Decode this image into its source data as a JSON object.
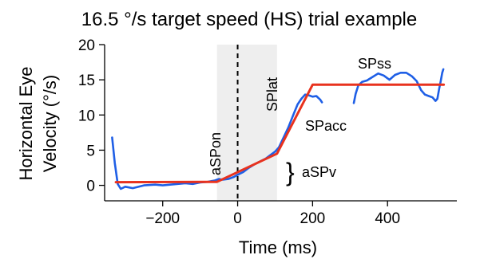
{
  "chart_data": {
    "type": "line",
    "title": "16.5 °/s target speed (HS) trial example",
    "xlabel": "Time (ms)",
    "ylabel_line1": "Horizontal Eye",
    "ylabel_line2": "Velocity (°/s)",
    "xlim": [
      -355,
      585
    ],
    "ylim": [
      -2.2,
      20
    ],
    "xticks": [
      -200,
      0,
      200,
      400
    ],
    "yticks": [
      0,
      5,
      10,
      15,
      20
    ],
    "grid": false,
    "shaded_region": {
      "x_start": -55,
      "x_end": 105,
      "color": "#eeeeee"
    },
    "vertical_line": {
      "x": 0,
      "style": "dashed",
      "color": "#000000"
    },
    "series": [
      {
        "role": "eye-velocity-early",
        "color": "#1f5fe6",
        "points": [
          [
            -335,
            6.8
          ],
          [
            -328,
            3.2
          ],
          [
            -320,
            0.2
          ],
          [
            -312,
            -0.5
          ],
          [
            -300,
            -0.2
          ],
          [
            -280,
            -0.4
          ],
          [
            -250,
            0.0
          ],
          [
            -220,
            0.1
          ],
          [
            -200,
            0.0
          ],
          [
            -180,
            0.1
          ],
          [
            -160,
            0.2
          ],
          [
            -140,
            0.3
          ],
          [
            -120,
            0.2
          ],
          [
            -100,
            0.4
          ],
          [
            -80,
            0.5
          ],
          [
            -60,
            0.7
          ],
          [
            -50,
            0.9
          ],
          [
            -40,
            0.8
          ],
          [
            -25,
            0.9
          ],
          [
            -10,
            1.2
          ],
          [
            0,
            1.5
          ],
          [
            15,
            1.9
          ],
          [
            30,
            2.5
          ],
          [
            45,
            3.0
          ],
          [
            60,
            3.4
          ],
          [
            75,
            3.8
          ],
          [
            90,
            4.4
          ],
          [
            100,
            4.8
          ],
          [
            110,
            5.4
          ],
          [
            120,
            6.5
          ],
          [
            135,
            8.2
          ],
          [
            150,
            10.2
          ],
          [
            160,
            11.5
          ],
          [
            170,
            12.3
          ],
          [
            180,
            12.9
          ],
          [
            190,
            12.8
          ],
          [
            200,
            12.6
          ],
          [
            210,
            12.7
          ],
          [
            220,
            12.2
          ],
          [
            225,
            11.8
          ]
        ]
      },
      {
        "role": "eye-velocity-late",
        "color": "#1f5fe6",
        "points": [
          [
            310,
            11.7
          ],
          [
            315,
            13.0
          ],
          [
            322,
            14.2
          ],
          [
            332,
            14.7
          ],
          [
            345,
            14.9
          ],
          [
            360,
            15.4
          ],
          [
            375,
            15.9
          ],
          [
            390,
            15.6
          ],
          [
            405,
            15.0
          ],
          [
            420,
            15.7
          ],
          [
            435,
            16.0
          ],
          [
            450,
            16.0
          ],
          [
            465,
            15.5
          ],
          [
            478,
            14.8
          ],
          [
            490,
            13.5
          ],
          [
            500,
            12.9
          ],
          [
            510,
            12.7
          ],
          [
            520,
            12.5
          ],
          [
            528,
            12.0
          ],
          [
            533,
            12.3
          ],
          [
            538,
            13.8
          ],
          [
            542,
            14.8
          ],
          [
            546,
            16.0
          ],
          [
            549,
            16.5
          ]
        ]
      },
      {
        "role": "piecewise-linear-fit",
        "color": "#e8321e",
        "points": [
          [
            -325,
            0.45
          ],
          [
            -55,
            0.5
          ],
          [
            105,
            4.5
          ],
          [
            200,
            14.3
          ],
          [
            550,
            14.3
          ]
        ]
      }
    ],
    "annotations": {
      "asp_on": "aSPon",
      "sp_lat": "SPlat",
      "sp_acc": "SPacc",
      "sp_ss": "SPss",
      "asp_v": "aSPv",
      "brace": "}"
    }
  }
}
